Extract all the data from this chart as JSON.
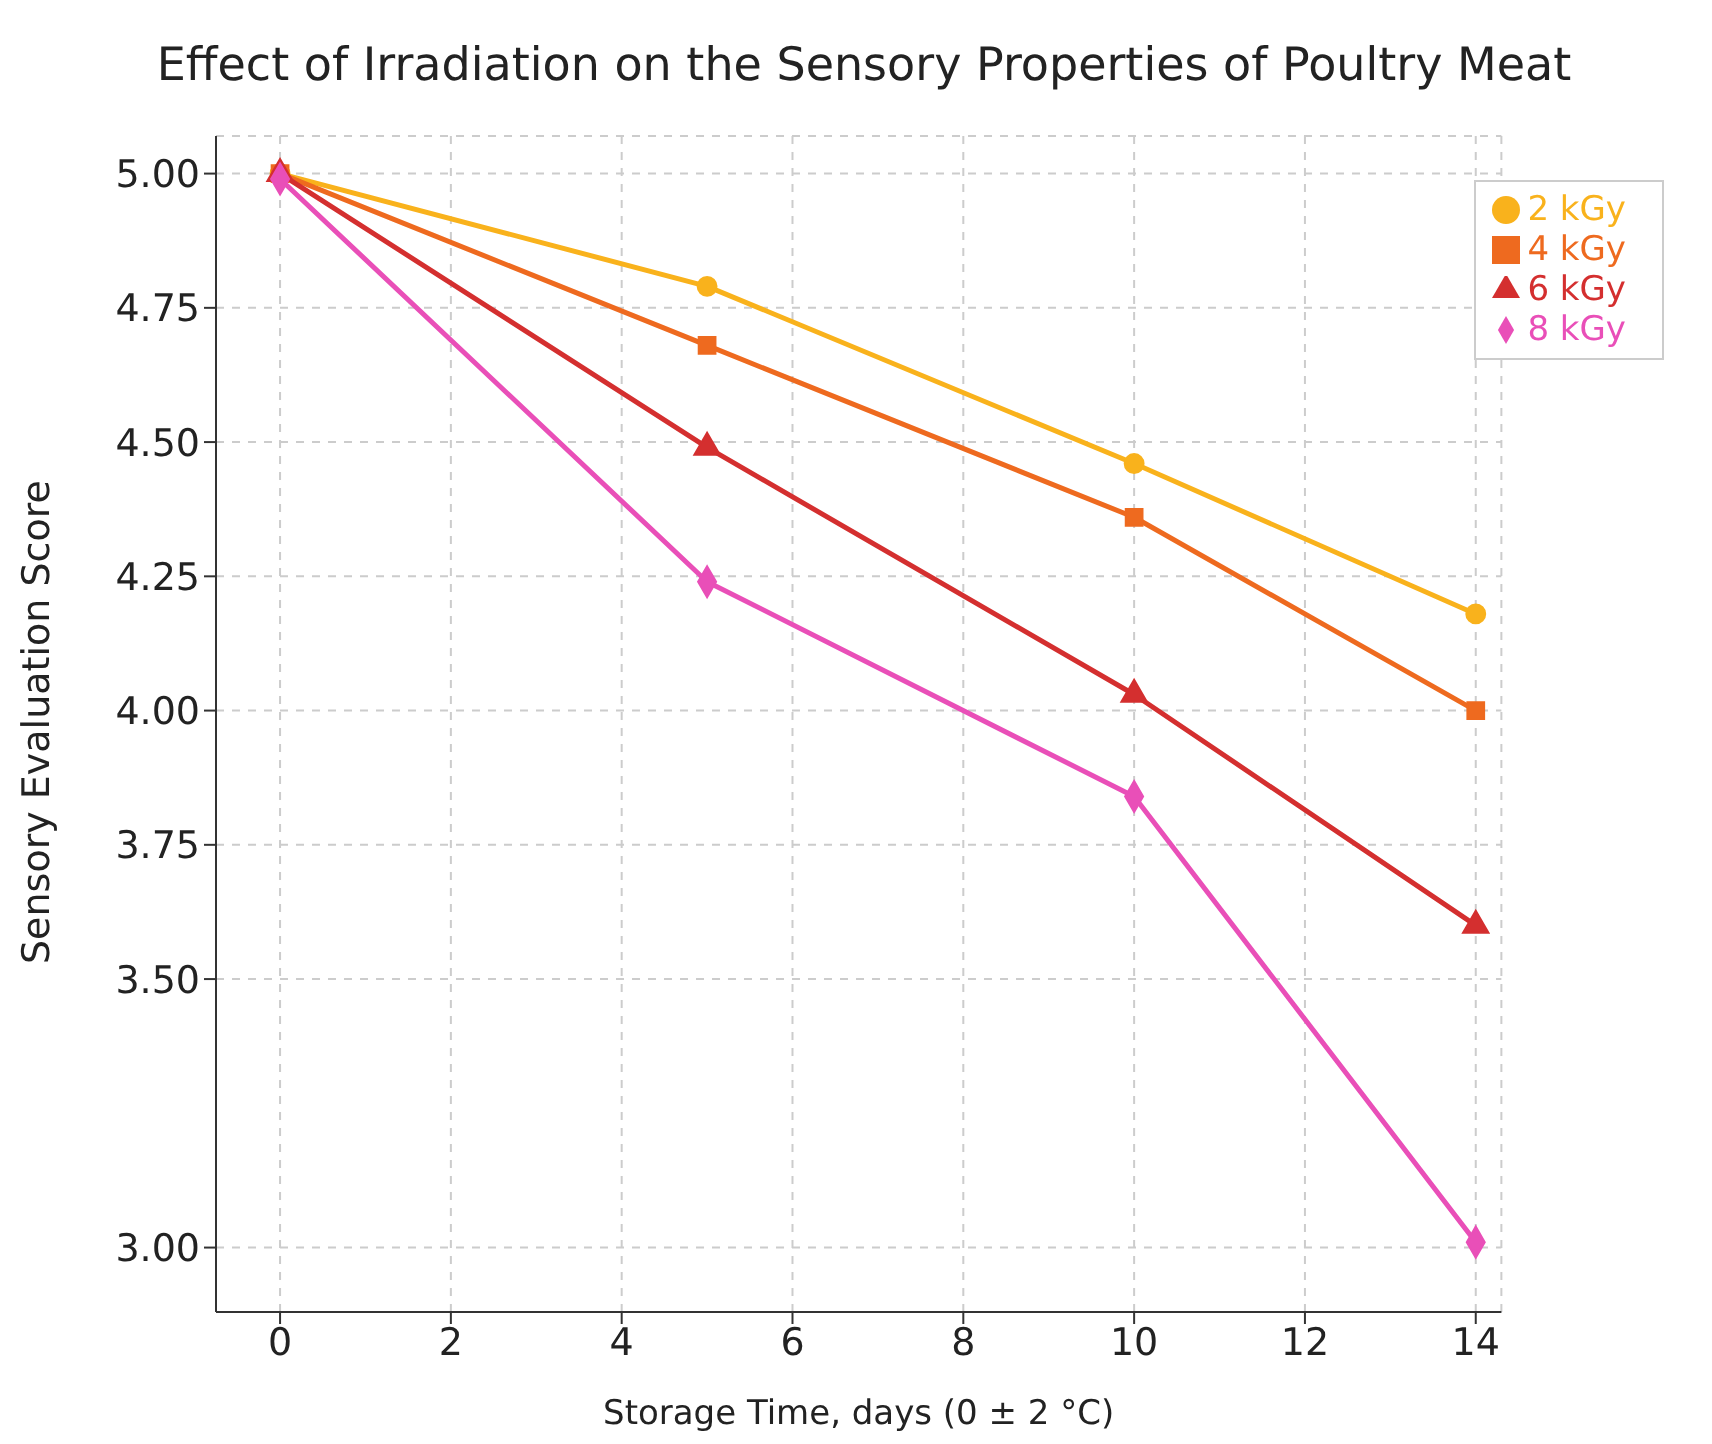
{
  "chart_data": {
    "type": "line",
    "title": "Effect of Irradiation on the Sensory Properties of Poultry Meat",
    "xlabel": "Storage Time, days (0 ± 2 °C)",
    "ylabel": "Sensory Evaluation Score",
    "x": [
      0,
      5,
      10,
      14
    ],
    "series": [
      {
        "name": "2 kGy",
        "color": "#f9b21c",
        "marker": "circle",
        "values": [
          5.0,
          4.79,
          4.46,
          4.18
        ]
      },
      {
        "name": "4 kGy",
        "color": "#ee6a1f",
        "marker": "square",
        "values": [
          5.0,
          4.68,
          4.36,
          4.0
        ]
      },
      {
        "name": "6 kGy",
        "color": "#d42f2f",
        "marker": "triangle",
        "values": [
          5.0,
          4.49,
          4.03,
          3.6
        ]
      },
      {
        "name": "8 kGy",
        "color": "#e94fb8",
        "marker": "diamond",
        "values": [
          4.99,
          4.24,
          3.84,
          3.01
        ]
      }
    ],
    "xlim": [
      -0.75,
      14.3
    ],
    "xticks": [
      0,
      2,
      4,
      6,
      8,
      10,
      12,
      14
    ],
    "ylim": [
      2.88,
      5.07
    ],
    "yticks": [
      {
        "value": 3.0,
        "label": "3.00"
      },
      {
        "value": 3.5,
        "label": "3.50"
      },
      {
        "value": 3.75,
        "label": "3.75"
      },
      {
        "value": 4.0,
        "label": "4.00"
      },
      {
        "value": 4.25,
        "label": "4.25"
      },
      {
        "value": 4.5,
        "label": "4.50"
      },
      {
        "value": 4.75,
        "label": "4.75"
      },
      {
        "value": 5.0,
        "label": "5.00"
      }
    ],
    "grid": true,
    "legend": "top right",
    "line_style": "solid"
  }
}
